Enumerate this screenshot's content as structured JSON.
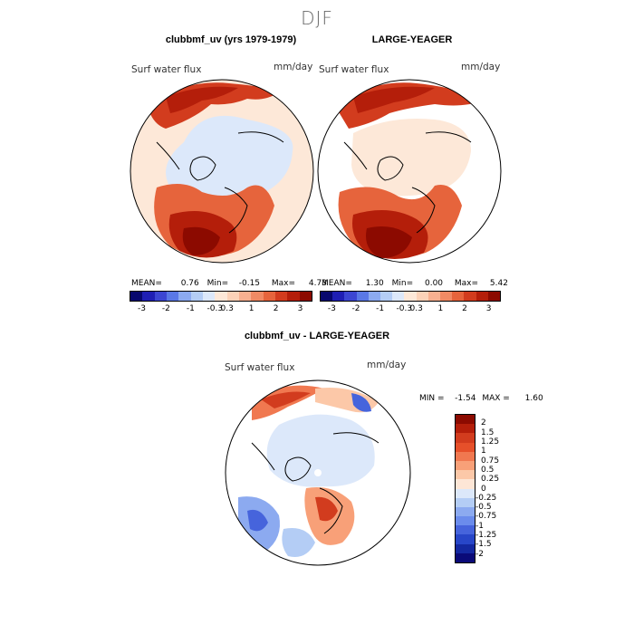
{
  "page_title": "DJF",
  "panels": {
    "left": {
      "title": "clubbmf_uv (yrs 1979-1979)",
      "variable": "Surf water flux",
      "units": "mm/day",
      "mean_label": "MEAN=",
      "mean": "0.76",
      "min_label": "Min=",
      "min": "-0.15",
      "max_label": "Max=",
      "max": "4.73"
    },
    "right": {
      "title": "LARGE-YEAGER",
      "variable": "Surf water flux",
      "units": "mm/day",
      "mean_label": "MEAN=",
      "mean": "1.30",
      "min_label": "Min=",
      "min": "0.00",
      "max_label": "Max=",
      "max": "5.42"
    },
    "diff": {
      "title": "clubbmf_uv - LARGE-YEAGER",
      "variable": "Surf water flux",
      "units": "mm/day",
      "min_label": "MIN =",
      "min": "-1.54",
      "max_label": "MAX =",
      "max": "1.60"
    }
  },
  "colorbar_top": {
    "colors": [
      "#08086e",
      "#1f1fb4",
      "#3c46d2",
      "#5a78e6",
      "#8caaf0",
      "#b4cdf5",
      "#dce8fa",
      "#fde8d8",
      "#fcd2b8",
      "#f8b090",
      "#f08a64",
      "#e6643c",
      "#d23c1e",
      "#b41e0a",
      "#8c0a00"
    ],
    "tick_labels": [
      "-3",
      "-2",
      "-1",
      "-0.3",
      "0.3",
      "1",
      "2",
      "3"
    ]
  },
  "colorbar_diff": {
    "colors": [
      "#8c0a00",
      "#b41e0a",
      "#d23c1e",
      "#e6502a",
      "#f07850",
      "#f8a078",
      "#fcc8a8",
      "#fde6d6",
      "#dce8fa",
      "#b4cdf5",
      "#8caaf0",
      "#6b8cec",
      "#4664dc",
      "#2846c8",
      "#1428a0",
      "#0a0a78"
    ],
    "labels": [
      "2",
      "1.5",
      "1.25",
      "1",
      "0.75",
      "0.5",
      "0.25",
      "0",
      "-0.25",
      "-0.5",
      "-0.75",
      "-1",
      "-1.25",
      "-1.5",
      "-2"
    ]
  }
}
